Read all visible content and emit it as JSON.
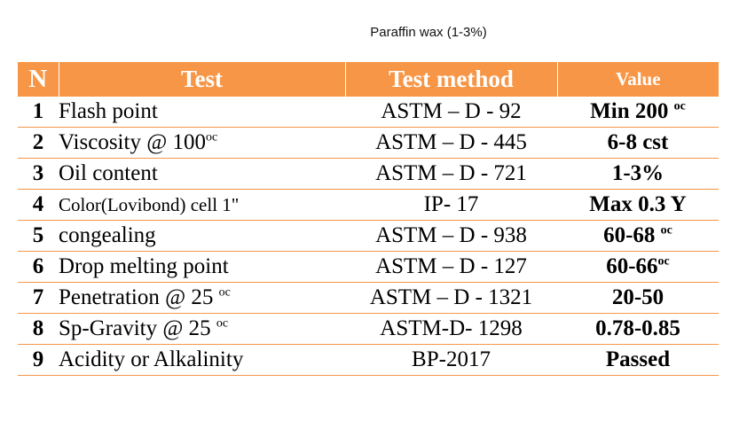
{
  "caption": "Paraffin wax (1-3%)",
  "headers": {
    "n": "N",
    "test": "Test",
    "method": "Test method",
    "value": "Value"
  },
  "rows": [
    {
      "n": "1",
      "test": "Flash point",
      "test_sup": "",
      "method": "ASTM – D - 92",
      "value": "Min 200",
      "value_sup": "oc"
    },
    {
      "n": "2",
      "test": "Viscosity @ 100",
      "test_sup": "oc",
      "method": "ASTM – D - 445",
      "value": "6-8 cst",
      "value_sup": ""
    },
    {
      "n": "3",
      "test": "Oil content",
      "test_sup": "",
      "method": "ASTM – D - 721",
      "value": "1-3%",
      "value_sup": ""
    },
    {
      "n": "4",
      "test": "Color(Lovibond) cell 1\"",
      "test_sup": "",
      "method": "IP- 17",
      "value": "Max 0.3 Y",
      "value_sup": ""
    },
    {
      "n": "5",
      "test": "congealing",
      "test_sup": "",
      "method": "ASTM – D - 938",
      "value": "60-68",
      "value_sup": "oc"
    },
    {
      "n": "6",
      "test": "Drop melting point",
      "test_sup": "",
      "method": "ASTM – D - 127",
      "value": "60-66",
      "value_sup": "oc"
    },
    {
      "n": "7",
      "test": "Penetration @ 25",
      "test_sup": "oc",
      "method": "ASTM – D - 1321",
      "value": "20-50",
      "value_sup": ""
    },
    {
      "n": "8",
      "test": "Sp-Gravity @ 25",
      "test_sup": "oc",
      "method": "ASTM-D- 1298",
      "value": "0.78-0.85",
      "value_sup": ""
    },
    {
      "n": "9",
      "test": "Acidity or Alkalinity",
      "test_sup": "",
      "method": "BP-2017",
      "value": "Passed",
      "value_sup": ""
    }
  ],
  "colors": {
    "header_bg": "#f79646",
    "header_text": "#ffffff",
    "row_rule": "#f79646"
  }
}
